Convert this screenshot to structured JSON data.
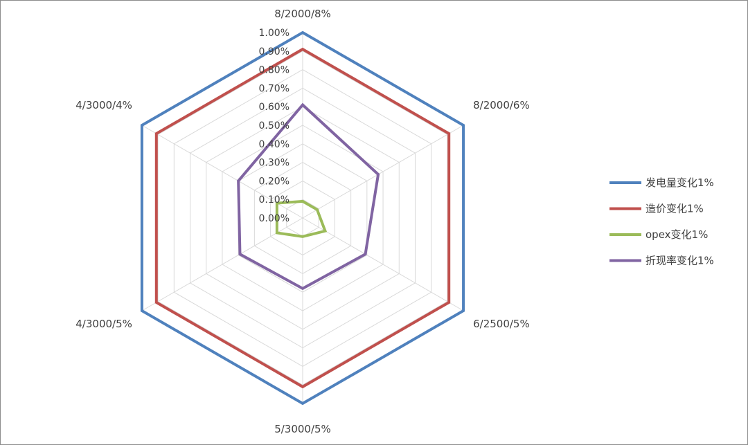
{
  "chart_data": {
    "type": "radar",
    "categories": [
      "8/2000/8%",
      "8/2000/6%",
      "6/2500/5%",
      "5/3000/5%",
      "4/3000/5%",
      "4/3000/4%"
    ],
    "rticks": [
      "0.00%",
      "0.10%",
      "0.20%",
      "0.30%",
      "0.40%",
      "0.50%",
      "0.60%",
      "0.70%",
      "0.80%",
      "0.90%",
      "1.00%"
    ],
    "rlim": [
      0,
      1.0
    ],
    "unit": "%",
    "legend_position": "right",
    "series": [
      {
        "name": "发电量变化1%",
        "color": "#4f81bd",
        "values": [
          1.0,
          1.0,
          1.0,
          1.0,
          1.0,
          1.0
        ]
      },
      {
        "name": "造价变化1%",
        "color": "#c0504d",
        "values": [
          0.91,
          0.91,
          0.91,
          0.91,
          0.91,
          0.91
        ]
      },
      {
        "name": "opex变化1%",
        "color": "#9bbb59",
        "values": [
          0.09,
          0.09,
          0.14,
          0.1,
          0.16,
          0.16
        ]
      },
      {
        "name": "折现率变化1%",
        "color": "#8064a2",
        "values": [
          0.61,
          0.47,
          0.39,
          0.38,
          0.39,
          0.4
        ]
      }
    ]
  }
}
